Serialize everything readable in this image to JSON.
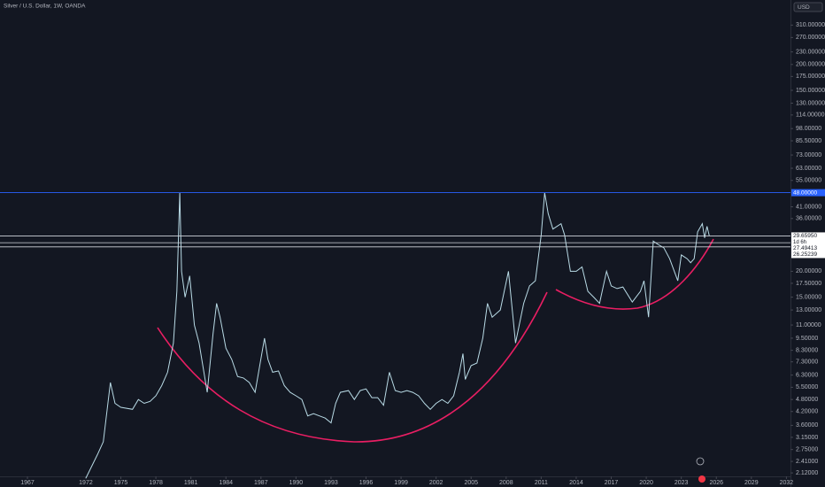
{
  "chart_data": {
    "type": "line",
    "title": "Silver / U.S. Dollar, 1W, OANDA",
    "currency": "USD",
    "log_scale": true,
    "grid": false,
    "color": "#b9dbe6",
    "xlim": [
      1964.65,
      2032.35
    ],
    "ylim": [
      2.0,
      330
    ],
    "xticks": [
      1967,
      1972,
      1975,
      1978,
      1981,
      1984,
      1987,
      1990,
      1993,
      1996,
      1999,
      2002,
      2005,
      2008,
      2011,
      2014,
      2017,
      2020,
      2023,
      2026,
      2029,
      2032
    ],
    "yticks": [
      {
        "value": 310,
        "label": "310.00000"
      },
      {
        "value": 270,
        "label": "270.00000"
      },
      {
        "value": 230,
        "label": "230.00000"
      },
      {
        "value": 200,
        "label": "200.00000"
      },
      {
        "value": 175,
        "label": "175.00000"
      },
      {
        "value": 150,
        "label": "150.00000"
      },
      {
        "value": 130,
        "label": "130.00000"
      },
      {
        "value": 114,
        "label": "114.00000"
      },
      {
        "value": 98,
        "label": "98.00000"
      },
      {
        "value": 85.5,
        "label": "85.50000"
      },
      {
        "value": 73,
        "label": "73.00000"
      },
      {
        "value": 63,
        "label": "63.00000"
      },
      {
        "value": 55,
        "label": "55.00000"
      },
      {
        "value": 41,
        "label": "41.00000"
      },
      {
        "value": 36,
        "label": "36.00000"
      },
      {
        "value": 20,
        "label": "20.00000"
      },
      {
        "value": 17.5,
        "label": "17.50000"
      },
      {
        "value": 15,
        "label": "15.00000"
      },
      {
        "value": 13,
        "label": "13.00000"
      },
      {
        "value": 11,
        "label": "11.00000"
      },
      {
        "value": 9.5,
        "label": "9.50000"
      },
      {
        "value": 8.3,
        "label": "8.30000"
      },
      {
        "value": 7.3,
        "label": "7.30000"
      },
      {
        "value": 6.3,
        "label": "6.30000"
      },
      {
        "value": 5.5,
        "label": "5.50000"
      },
      {
        "value": 4.8,
        "label": "4.80000"
      },
      {
        "value": 4.2,
        "label": "4.20000"
      },
      {
        "value": 3.6,
        "label": "3.60000"
      },
      {
        "value": 3.15,
        "label": "3.15000"
      },
      {
        "value": 2.75,
        "label": "2.75000"
      },
      {
        "value": 2.41,
        "label": "2.41000"
      },
      {
        "value": 2.12,
        "label": "2.12000"
      }
    ],
    "price_lines": [
      {
        "value": 48,
        "label": "48.00000",
        "color": "#2962ff"
      },
      {
        "value": 29.6595,
        "label": "29.65950",
        "color": "#d1d4dc"
      },
      {
        "value": 27.49413,
        "label": "27.49413",
        "color": "#d1d4dc"
      },
      {
        "value": 26.25239,
        "label": "26.25239",
        "color": "#d1d4dc"
      }
    ],
    "countdown": "1d 6h",
    "x": [
      1972,
      1973,
      1973.5,
      1974.1,
      1974.5,
      1975,
      1976,
      1976.5,
      1977,
      1977.5,
      1978,
      1978.5,
      1979,
      1979.5,
      1979.8,
      1980.05,
      1980.2,
      1980.5,
      1980.9,
      1981.3,
      1981.7,
      1982.4,
      1982.9,
      1983.2,
      1983.5,
      1984,
      1984.5,
      1985,
      1985.5,
      1986,
      1986.5,
      1987.3,
      1987.6,
      1988,
      1988.5,
      1989,
      1989.5,
      1990,
      1990.5,
      1991,
      1991.5,
      1992,
      1992.5,
      1993,
      1993.4,
      1993.8,
      1994.5,
      1995,
      1995.5,
      1996,
      1996.5,
      1997,
      1997.5,
      1998,
      1998.5,
      1999,
      1999.5,
      2000,
      2000.5,
      2001,
      2001.5,
      2002,
      2002.5,
      2003,
      2003.5,
      2004,
      2004.3,
      2004.5,
      2005,
      2005.5,
      2006,
      2006.4,
      2006.8,
      2007.5,
      2008.2,
      2008.8,
      2009.5,
      2010,
      2010.5,
      2011,
      2011.3,
      2011.6,
      2012,
      2012.7,
      2013,
      2013.5,
      2014,
      2014.5,
      2015,
      2015.5,
      2016,
      2016.6,
      2017,
      2017.5,
      2018,
      2018.8,
      2019.5,
      2019.8,
      2020.2,
      2020.6,
      2021,
      2021.5,
      2022,
      2022.7,
      2023,
      2023.5,
      2023.8,
      2024.1,
      2024.4,
      2024.8,
      2025.0,
      2025.2,
      2025.4
    ],
    "series": [
      {
        "values": [
          2.0,
          2.6,
          3.0,
          5.8,
          4.6,
          4.4,
          4.3,
          4.8,
          4.6,
          4.7,
          5.0,
          5.6,
          6.5,
          9.0,
          16,
          48,
          20,
          15,
          19,
          11,
          9,
          5.2,
          10,
          14,
          12,
          8.5,
          7.5,
          6.2,
          6.1,
          5.8,
          5.2,
          9.5,
          7.5,
          6.5,
          6.6,
          5.6,
          5.2,
          5.0,
          4.8,
          4.0,
          4.1,
          4.0,
          3.9,
          3.7,
          4.6,
          5.2,
          5.3,
          4.8,
          5.3,
          5.4,
          4.9,
          4.9,
          4.5,
          6.5,
          5.3,
          5.2,
          5.3,
          5.2,
          5.0,
          4.6,
          4.3,
          4.6,
          4.8,
          4.6,
          5.0,
          6.5,
          8.0,
          6.0,
          7.0,
          7.2,
          9.5,
          14,
          12,
          13,
          20,
          9,
          14,
          17,
          18,
          30,
          48,
          38,
          32,
          34,
          30,
          20,
          20,
          21,
          16,
          15,
          14,
          20,
          17,
          16.5,
          16.8,
          14.2,
          16,
          18,
          12,
          28,
          27,
          26,
          23,
          18,
          24,
          23,
          22,
          23,
          31,
          34,
          29,
          33,
          29.66
        ]
      }
    ]
  }
}
